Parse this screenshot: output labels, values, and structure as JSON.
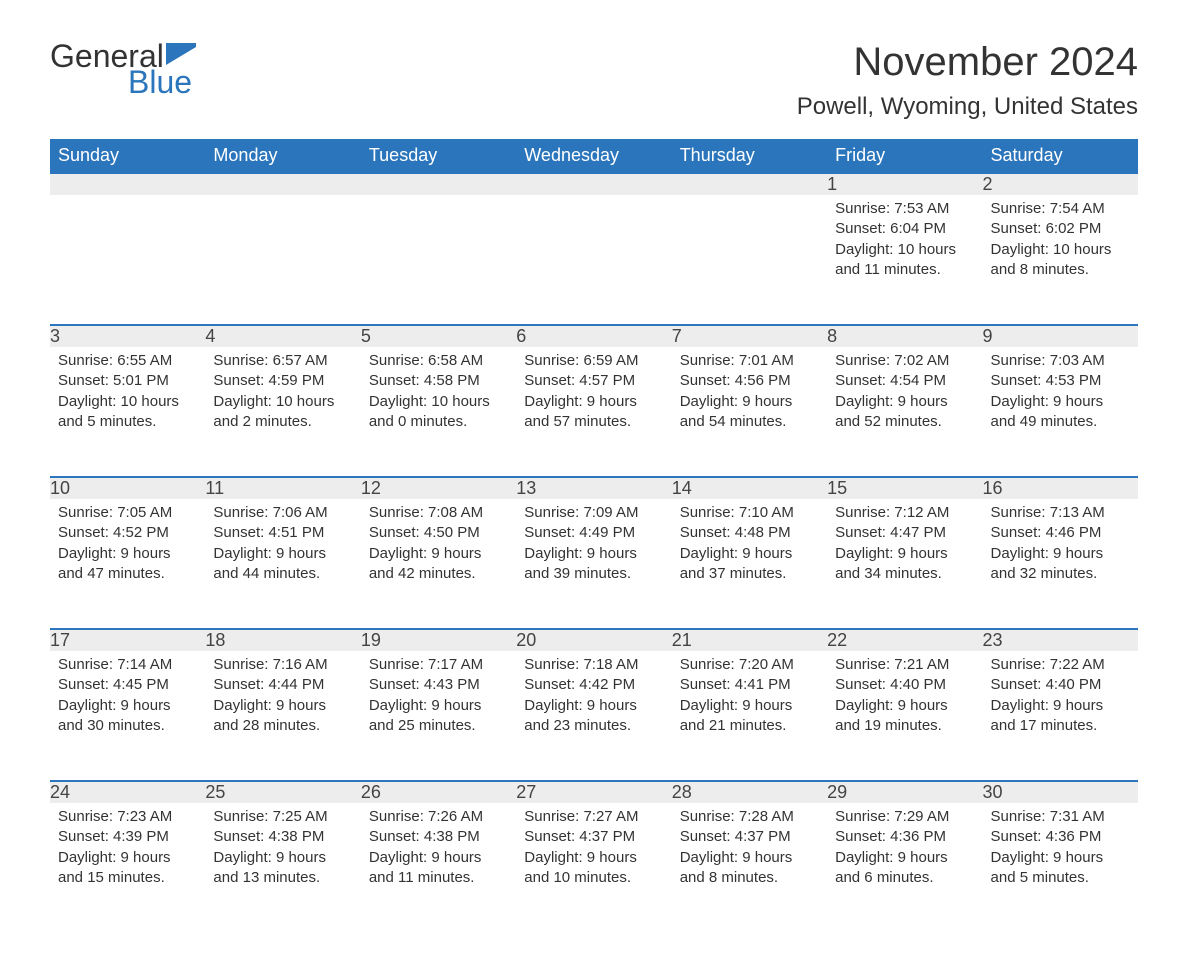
{
  "logo": {
    "text1": "General",
    "text2": "Blue",
    "flag_color": "#2a75bb"
  },
  "title": "November 2024",
  "location": "Powell, Wyoming, United States",
  "colors": {
    "header_bg": "#2a75bb",
    "header_text": "#ffffff",
    "daynum_bg": "#ededed",
    "row_divider": "#2a75bb",
    "body_text": "#333333",
    "background": "#ffffff"
  },
  "typography": {
    "title_fontsize": 40,
    "location_fontsize": 24,
    "header_fontsize": 18,
    "daynum_fontsize": 18,
    "body_fontsize": 15,
    "font_family": "Arial"
  },
  "weekdays": [
    "Sunday",
    "Monday",
    "Tuesday",
    "Wednesday",
    "Thursday",
    "Friday",
    "Saturday"
  ],
  "labels": {
    "sunrise": "Sunrise:",
    "sunset": "Sunset:",
    "daylight": "Daylight:"
  },
  "weeks": [
    [
      null,
      null,
      null,
      null,
      null,
      {
        "n": "1",
        "sr": "7:53 AM",
        "ss": "6:04 PM",
        "dl": "10 hours and 11 minutes."
      },
      {
        "n": "2",
        "sr": "7:54 AM",
        "ss": "6:02 PM",
        "dl": "10 hours and 8 minutes."
      }
    ],
    [
      {
        "n": "3",
        "sr": "6:55 AM",
        "ss": "5:01 PM",
        "dl": "10 hours and 5 minutes."
      },
      {
        "n": "4",
        "sr": "6:57 AM",
        "ss": "4:59 PM",
        "dl": "10 hours and 2 minutes."
      },
      {
        "n": "5",
        "sr": "6:58 AM",
        "ss": "4:58 PM",
        "dl": "10 hours and 0 minutes."
      },
      {
        "n": "6",
        "sr": "6:59 AM",
        "ss": "4:57 PM",
        "dl": "9 hours and 57 minutes."
      },
      {
        "n": "7",
        "sr": "7:01 AM",
        "ss": "4:56 PM",
        "dl": "9 hours and 54 minutes."
      },
      {
        "n": "8",
        "sr": "7:02 AM",
        "ss": "4:54 PM",
        "dl": "9 hours and 52 minutes."
      },
      {
        "n": "9",
        "sr": "7:03 AM",
        "ss": "4:53 PM",
        "dl": "9 hours and 49 minutes."
      }
    ],
    [
      {
        "n": "10",
        "sr": "7:05 AM",
        "ss": "4:52 PM",
        "dl": "9 hours and 47 minutes."
      },
      {
        "n": "11",
        "sr": "7:06 AM",
        "ss": "4:51 PM",
        "dl": "9 hours and 44 minutes."
      },
      {
        "n": "12",
        "sr": "7:08 AM",
        "ss": "4:50 PM",
        "dl": "9 hours and 42 minutes."
      },
      {
        "n": "13",
        "sr": "7:09 AM",
        "ss": "4:49 PM",
        "dl": "9 hours and 39 minutes."
      },
      {
        "n": "14",
        "sr": "7:10 AM",
        "ss": "4:48 PM",
        "dl": "9 hours and 37 minutes."
      },
      {
        "n": "15",
        "sr": "7:12 AM",
        "ss": "4:47 PM",
        "dl": "9 hours and 34 minutes."
      },
      {
        "n": "16",
        "sr": "7:13 AM",
        "ss": "4:46 PM",
        "dl": "9 hours and 32 minutes."
      }
    ],
    [
      {
        "n": "17",
        "sr": "7:14 AM",
        "ss": "4:45 PM",
        "dl": "9 hours and 30 minutes."
      },
      {
        "n": "18",
        "sr": "7:16 AM",
        "ss": "4:44 PM",
        "dl": "9 hours and 28 minutes."
      },
      {
        "n": "19",
        "sr": "7:17 AM",
        "ss": "4:43 PM",
        "dl": "9 hours and 25 minutes."
      },
      {
        "n": "20",
        "sr": "7:18 AM",
        "ss": "4:42 PM",
        "dl": "9 hours and 23 minutes."
      },
      {
        "n": "21",
        "sr": "7:20 AM",
        "ss": "4:41 PM",
        "dl": "9 hours and 21 minutes."
      },
      {
        "n": "22",
        "sr": "7:21 AM",
        "ss": "4:40 PM",
        "dl": "9 hours and 19 minutes."
      },
      {
        "n": "23",
        "sr": "7:22 AM",
        "ss": "4:40 PM",
        "dl": "9 hours and 17 minutes."
      }
    ],
    [
      {
        "n": "24",
        "sr": "7:23 AM",
        "ss": "4:39 PM",
        "dl": "9 hours and 15 minutes."
      },
      {
        "n": "25",
        "sr": "7:25 AM",
        "ss": "4:38 PM",
        "dl": "9 hours and 13 minutes."
      },
      {
        "n": "26",
        "sr": "7:26 AM",
        "ss": "4:38 PM",
        "dl": "9 hours and 11 minutes."
      },
      {
        "n": "27",
        "sr": "7:27 AM",
        "ss": "4:37 PM",
        "dl": "9 hours and 10 minutes."
      },
      {
        "n": "28",
        "sr": "7:28 AM",
        "ss": "4:37 PM",
        "dl": "9 hours and 8 minutes."
      },
      {
        "n": "29",
        "sr": "7:29 AM",
        "ss": "4:36 PM",
        "dl": "9 hours and 6 minutes."
      },
      {
        "n": "30",
        "sr": "7:31 AM",
        "ss": "4:36 PM",
        "dl": "9 hours and 5 minutes."
      }
    ]
  ]
}
